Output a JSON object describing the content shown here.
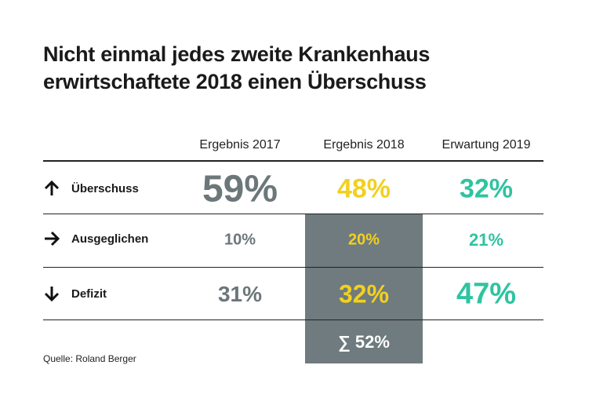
{
  "title_lines": [
    "Nicht einmal jedes zweite Krankenhaus",
    "erwirtschaftete 2018 einen Überschuss"
  ],
  "colors": {
    "c2017": "#6c777a",
    "c2018": "#f2d01f",
    "c2019": "#2ec4a0",
    "highlight": "#6f7b7e"
  },
  "chart_data": {
    "type": "table",
    "columns": [
      "Ergebnis 2017",
      "Ergebnis 2018",
      "Erwartung 2019"
    ],
    "rows": [
      {
        "label": "Überschuss",
        "icon": "arrow-up-icon",
        "values": [
          "59%",
          "48%",
          "32%"
        ]
      },
      {
        "label": "Ausgeglichen",
        "icon": "arrow-right-icon",
        "values": [
          "10%",
          "20%",
          "21%"
        ]
      },
      {
        "label": "Defizit",
        "icon": "arrow-down-icon",
        "values": [
          "31%",
          "32%",
          "47%"
        ]
      }
    ],
    "sum_2018": "∑ 52%"
  },
  "source": "Quelle: Roland Berger"
}
